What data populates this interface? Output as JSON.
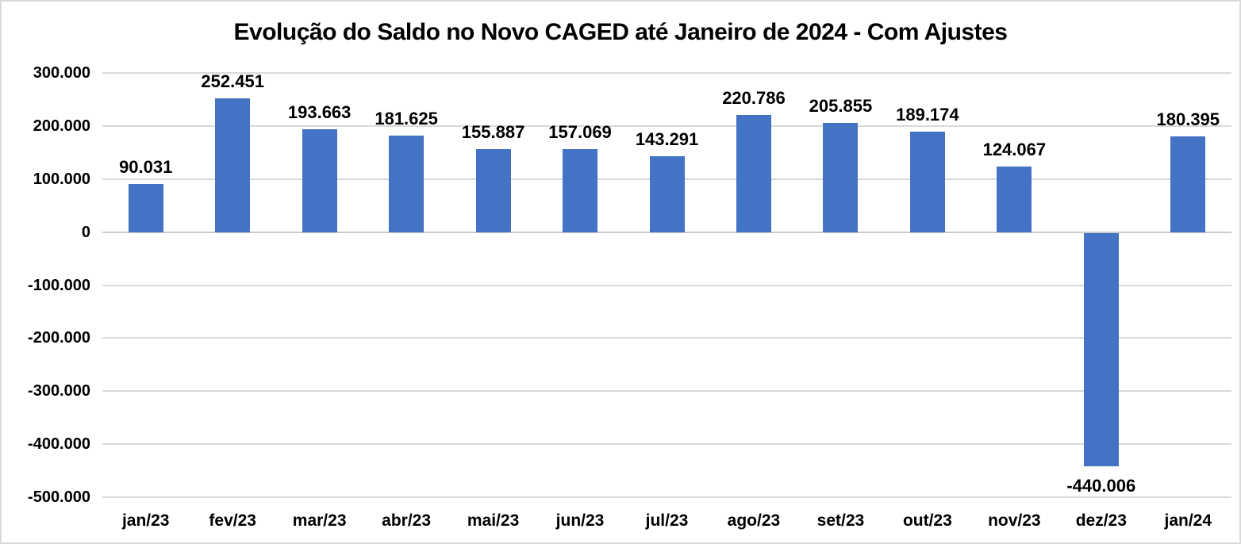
{
  "chart_data": {
    "type": "bar",
    "title": "Evolução do Saldo no Novo CAGED até Janeiro de 2024 - Com Ajustes",
    "categories": [
      "jan/23",
      "fev/23",
      "mar/23",
      "abr/23",
      "mai/23",
      "jun/23",
      "jul/23",
      "ago/23",
      "set/23",
      "out/23",
      "nov/23",
      "dez/23",
      "jan/24"
    ],
    "values": [
      90031,
      252451,
      193663,
      181625,
      155887,
      157069,
      143291,
      220786,
      205855,
      189174,
      124067,
      -440006,
      180395
    ],
    "data_labels": [
      "90.031",
      "252.451",
      "193.663",
      "181.625",
      "155.887",
      "157.069",
      "143.291",
      "220.786",
      "205.855",
      "189.174",
      "124.067",
      "-440.006",
      "180.395"
    ],
    "xlabel": "",
    "ylabel": "",
    "ylim": [
      -500000,
      300000
    ],
    "ytick_interval": 100000,
    "ytick_labels": [
      "300.000",
      "200.000",
      "100.000",
      "0",
      "-100.000",
      "-200.000",
      "-300.000",
      "-400.000",
      "-500.000"
    ],
    "grid": true,
    "legend": false,
    "colors": {
      "bar": "#4472C4",
      "gridline": "#D9D9D9",
      "text": "#000000",
      "border": "#D9D9D9",
      "background": "#FFFFFF"
    }
  }
}
